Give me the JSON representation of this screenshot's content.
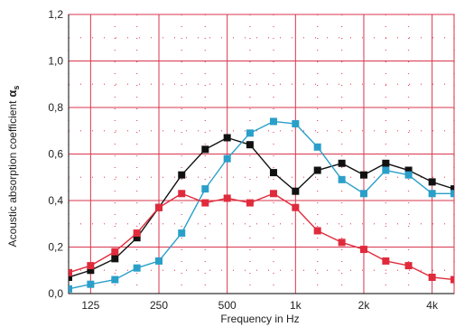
{
  "chart_data": {
    "type": "line",
    "xlabel": "Frequency in Hz",
    "ylabel": "Acoustic absorption coefficient",
    "ylabel_symbol": "α",
    "ylabel_subscript": "s",
    "x_scale": "log",
    "xlim": [
      100,
      5000
    ],
    "ylim": [
      0,
      1.2
    ],
    "x_ticks": [
      125,
      250,
      500,
      1000,
      2000,
      4000
    ],
    "x_tick_labels": [
      "125",
      "250",
      "500",
      "1k",
      "2k",
      "4k"
    ],
    "y_ticks": [
      0,
      0.2,
      0.4,
      0.6,
      0.8,
      1.0,
      1.2
    ],
    "y_tick_labels": [
      "0,0",
      "0,2",
      "0,4",
      "0,6",
      "0,8",
      "1,0",
      "1,2"
    ],
    "grid": true,
    "x": [
      100,
      125,
      160,
      200,
      250,
      315,
      400,
      500,
      630,
      800,
      1000,
      1250,
      1600,
      2000,
      2500,
      3150,
      4000,
      5000
    ],
    "series": [
      {
        "color": "#111111",
        "marker": "square",
        "values": [
          0.07,
          0.1,
          0.15,
          0.24,
          0.37,
          0.51,
          0.62,
          0.67,
          0.64,
          0.52,
          0.44,
          0.53,
          0.56,
          0.51,
          0.56,
          0.53,
          0.48,
          0.45
        ]
      },
      {
        "color": "#2a9fc9",
        "marker": "square",
        "values": [
          0.02,
          0.04,
          0.06,
          0.11,
          0.14,
          0.26,
          0.45,
          0.58,
          0.69,
          0.74,
          0.73,
          0.63,
          0.49,
          0.43,
          0.53,
          0.51,
          0.43,
          0.43
        ]
      },
      {
        "color": "#e02b3c",
        "marker": "square",
        "values": [
          0.09,
          0.12,
          0.18,
          0.26,
          0.37,
          0.43,
          0.39,
          0.41,
          0.39,
          0.43,
          0.37,
          0.27,
          0.22,
          0.19,
          0.14,
          0.12,
          0.07,
          0.06
        ]
      }
    ],
    "colors": {
      "grid": "#d8364e",
      "axis": "#333333",
      "minor_dots": "#e8586e"
    }
  }
}
